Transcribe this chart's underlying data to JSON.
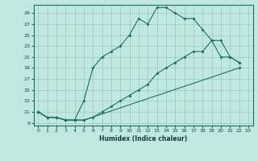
{
  "xlabel": "Humidex (Indice chaleur)",
  "bg_color": "#c0e8e0",
  "grid_color": "#98c8c0",
  "line_color": "#1a7068",
  "xlim": [
    -0.5,
    23.5
  ],
  "ylim": [
    8.5,
    30.5
  ],
  "yticks": [
    9,
    11,
    13,
    15,
    17,
    19,
    21,
    23,
    25,
    27,
    29
  ],
  "xticks": [
    0,
    1,
    2,
    3,
    4,
    5,
    6,
    7,
    8,
    9,
    10,
    11,
    12,
    13,
    14,
    15,
    16,
    17,
    18,
    19,
    20,
    21,
    22,
    23
  ],
  "line1_x": [
    0,
    1,
    2,
    3,
    4,
    5,
    6,
    7,
    8,
    9,
    10,
    11,
    12,
    13,
    14,
    15,
    16,
    17,
    18,
    19,
    20,
    21,
    22
  ],
  "line1_y": [
    11,
    10,
    10,
    9.5,
    9.5,
    13,
    19,
    21,
    22,
    23,
    25,
    28,
    27,
    30,
    30,
    29,
    28,
    28,
    26,
    24,
    21,
    21,
    20
  ],
  "line2_x": [
    0,
    1,
    2,
    3,
    4,
    5,
    6,
    7,
    8,
    9,
    10,
    11,
    12,
    13,
    14,
    15,
    16,
    17,
    18,
    19,
    20,
    21,
    22
  ],
  "line2_y": [
    11,
    10,
    10,
    9.5,
    9.5,
    9.5,
    10,
    11,
    12,
    13,
    14,
    15,
    16,
    18,
    19,
    20,
    21,
    22,
    22,
    24,
    24,
    21,
    20
  ],
  "line3_x": [
    0,
    1,
    2,
    3,
    4,
    5,
    22
  ],
  "line3_y": [
    11,
    10,
    10,
    9.5,
    9.5,
    9.5,
    19
  ]
}
